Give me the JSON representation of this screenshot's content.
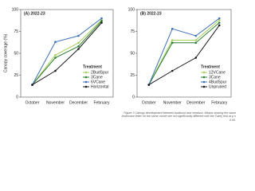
{
  "chart_data": [
    {
      "type": "line",
      "title": "(A) 2022-23",
      "y_label": "Canopy coverage (%)",
      "categories": [
        "October",
        "November",
        "December",
        "February"
      ],
      "ylim": [
        0,
        100
      ],
      "yticks": [
        0,
        25,
        50,
        75,
        100
      ],
      "grid": false,
      "legend_title": "Treatment",
      "legend_position": "lower-right",
      "series": [
        {
          "name": "2BudSpur",
          "color": "#a8cf5a",
          "values": [
            14,
            48,
            62,
            88
          ]
        },
        {
          "name": "3Cane",
          "color": "#2e7d32",
          "values": [
            14,
            45,
            58,
            87
          ]
        },
        {
          "name": "6VCane",
          "color": "#3d6fb6",
          "values": [
            14,
            63,
            70,
            90
          ]
        },
        {
          "name": "Horizontal",
          "color": "#1a1a1a",
          "values": [
            14,
            30,
            55,
            85
          ]
        }
      ]
    },
    {
      "type": "line",
      "title": "(B) 2022-23",
      "categories": [
        "October",
        "November",
        "December",
        "February"
      ],
      "ylim": [
        0,
        100
      ],
      "yticks": [
        0,
        25,
        50,
        75,
        100
      ],
      "grid": false,
      "legend_title": "Treatment",
      "legend_position": "lower-right",
      "series": [
        {
          "name": "12VCane",
          "color": "#a8cf5a",
          "values": [
            14,
            65,
            65,
            88
          ]
        },
        {
          "name": "3Cane",
          "color": "#2e7d32",
          "values": [
            14,
            62,
            62,
            85
          ]
        },
        {
          "name": "4BudSpur",
          "color": "#3d6fb6",
          "values": [
            14,
            78,
            70,
            90
          ]
        },
        {
          "name": "Unpruned",
          "color": "#1a1a1a",
          "values": [
            14,
            30,
            45,
            82
          ]
        }
      ]
    }
  ],
  "caption": "Figure 3 Canopy development between budburst and veraison. Means sharing the same lowercase letter on the same month are not significantly different with the Tukey test at p ≤ 0.05."
}
